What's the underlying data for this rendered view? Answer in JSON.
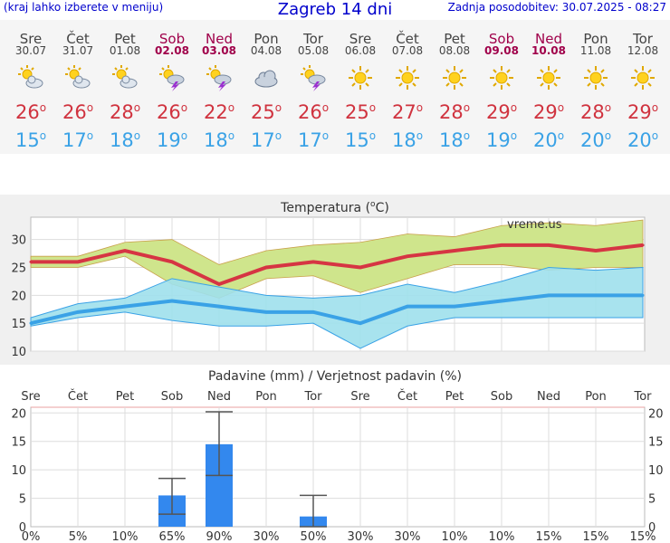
{
  "header": {
    "menu_hint": "(kraj lahko izberete v meniju)",
    "title": "Zagreb 14 dni",
    "updated": "Zadnja posodobitev: 30.07.2025 - 08:27"
  },
  "days": [
    {
      "name": "Sre",
      "date": "30.07",
      "weekend": false,
      "icon": "sun-cloud-icon",
      "tmax": "26",
      "tmin": "15"
    },
    {
      "name": "Čet",
      "date": "31.07",
      "weekend": false,
      "icon": "sun-cloud-icon",
      "tmax": "26",
      "tmin": "17"
    },
    {
      "name": "Pet",
      "date": "01.08",
      "weekend": false,
      "icon": "sun-cloud-icon",
      "tmax": "28",
      "tmin": "18"
    },
    {
      "name": "Sob",
      "date": "02.08",
      "weekend": true,
      "icon": "sun-storm-icon",
      "tmax": "26",
      "tmin": "19"
    },
    {
      "name": "Ned",
      "date": "03.08",
      "weekend": true,
      "icon": "sun-storm-icon",
      "tmax": "22",
      "tmin": "18"
    },
    {
      "name": "Pon",
      "date": "04.08",
      "weekend": false,
      "icon": "cloud-icon",
      "tmax": "25",
      "tmin": "17"
    },
    {
      "name": "Tor",
      "date": "05.08",
      "weekend": false,
      "icon": "sun-storm-icon",
      "tmax": "26",
      "tmin": "17"
    },
    {
      "name": "Sre",
      "date": "06.08",
      "weekend": false,
      "icon": "sun-icon",
      "tmax": "25",
      "tmin": "15"
    },
    {
      "name": "Čet",
      "date": "07.08",
      "weekend": false,
      "icon": "sun-icon",
      "tmax": "27",
      "tmin": "18"
    },
    {
      "name": "Pet",
      "date": "08.08",
      "weekend": false,
      "icon": "sun-icon",
      "tmax": "28",
      "tmin": "18"
    },
    {
      "name": "Sob",
      "date": "09.08",
      "weekend": true,
      "icon": "sun-icon",
      "tmax": "29",
      "tmin": "19"
    },
    {
      "name": "Ned",
      "date": "10.08",
      "weekend": true,
      "icon": "sun-icon",
      "tmax": "29",
      "tmin": "20"
    },
    {
      "name": "Pon",
      "date": "11.08",
      "weekend": false,
      "icon": "sun-icon",
      "tmax": "28",
      "tmin": "20"
    },
    {
      "name": "Tor",
      "date": "12.08",
      "weekend": false,
      "icon": "sun-icon",
      "tmax": "29",
      "tmin": "20"
    }
  ],
  "degree_mark": "o",
  "chart_data": [
    {
      "type": "line",
      "title_parts": [
        "Temperatura (",
        "o",
        "C)"
      ],
      "watermark": "vreme.us",
      "x": [
        "Sre",
        "Čet",
        "Pet",
        "Sob",
        "Ned",
        "Pon",
        "Tor",
        "Sre",
        "Čet",
        "Pet",
        "Sob",
        "Ned",
        "Pon",
        "Tor"
      ],
      "ylim": [
        10,
        34
      ],
      "yticks": [
        "10",
        "15",
        "20",
        "25",
        "30"
      ],
      "series": [
        {
          "role": "max",
          "values": [
            26,
            26,
            28,
            26,
            22,
            25,
            26,
            25,
            27,
            28,
            29,
            29,
            28,
            29
          ],
          "band_low": [
            25,
            25,
            27,
            22,
            19.5,
            23,
            23.5,
            20.5,
            23,
            25.5,
            25.5,
            24.5,
            25,
            25
          ],
          "band_high": [
            27,
            27,
            29.5,
            30,
            25.5,
            28,
            29,
            29.5,
            31,
            30.5,
            32.5,
            33,
            32.5,
            33.5
          ]
        },
        {
          "role": "min",
          "values": [
            15,
            17,
            18,
            19,
            18,
            17,
            17,
            15,
            18,
            18,
            19,
            20,
            20,
            20
          ],
          "band_low": [
            14.5,
            16,
            17,
            15.5,
            14.5,
            14.5,
            15,
            10.5,
            14.5,
            16,
            16,
            16,
            16,
            16
          ],
          "band_high": [
            16,
            18.5,
            19.5,
            23,
            21.5,
            20,
            19.5,
            20,
            22,
            20.5,
            22.5,
            25,
            24.5,
            25
          ]
        }
      ],
      "colors": {
        "max": "#d63543",
        "max_band": "#cfe58c",
        "min": "#3aa2e6",
        "min_band": "#9fe0ec"
      }
    },
    {
      "type": "bar",
      "title": "Padavine (mm) / Verjetnost padavin (%)",
      "x": [
        "Sre",
        "Čet",
        "Pet",
        "Sob",
        "Ned",
        "Pon",
        "Tor",
        "Sre",
        "Čet",
        "Pet",
        "Sob",
        "Ned",
        "Pon",
        "Tor"
      ],
      "weekend": [
        false,
        false,
        false,
        true,
        true,
        false,
        false,
        false,
        false,
        false,
        true,
        true,
        false,
        false
      ],
      "ylim": [
        0,
        21
      ],
      "yticks": [
        "0",
        "5",
        "10",
        "15",
        "20"
      ],
      "values": [
        0,
        0,
        0,
        5.5,
        14.5,
        0,
        1.8,
        0,
        0,
        0,
        0,
        0,
        0,
        0
      ],
      "error_low": [
        null,
        null,
        null,
        2.2,
        9,
        null,
        0,
        null,
        null,
        null,
        null,
        null,
        null,
        null
      ],
      "error_high": [
        null,
        null,
        null,
        8.5,
        20.2,
        null,
        5.5,
        null,
        null,
        null,
        null,
        null,
        null,
        null
      ],
      "probability": [
        "0%",
        "5%",
        "10%",
        "65%",
        "90%",
        "30%",
        "50%",
        "30%",
        "30%",
        "10%",
        "10%",
        "15%",
        "15%",
        "15%"
      ],
      "colors": {
        "bar": "#3388ee",
        "error": "#555555",
        "prob_high": "#1a1aa0",
        "prob_mid": "#3a7ed8",
        "prob_low": "#a8dcf2"
      }
    }
  ]
}
